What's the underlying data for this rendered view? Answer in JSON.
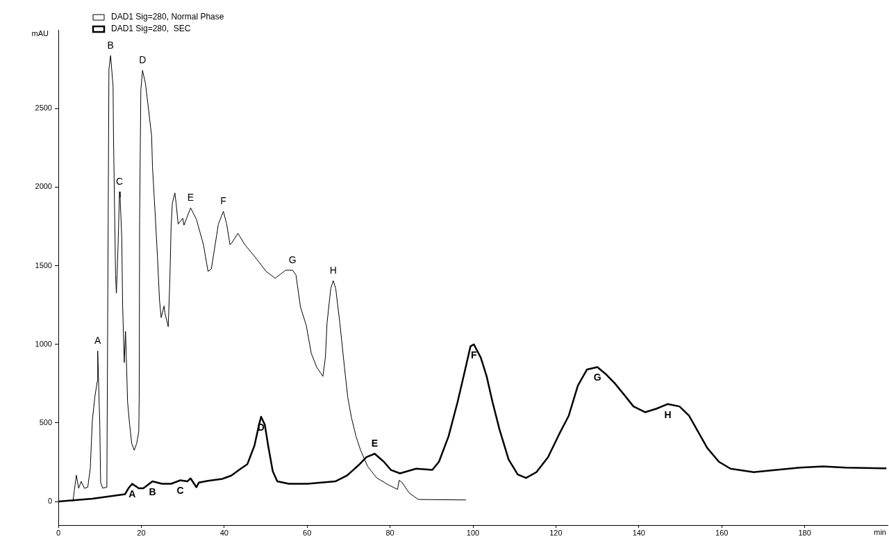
{
  "chart_data": {
    "type": "line",
    "xlabel": "min",
    "ylabel": "mAU",
    "xlim": [
      0,
      200
    ],
    "xticks": [
      0,
      20,
      40,
      60,
      80,
      100,
      120,
      140,
      160,
      180
    ],
    "ylim": [
      -150,
      3000
    ],
    "yticks": [
      0,
      500,
      1000,
      1500,
      2000,
      2500
    ],
    "grid": false,
    "legend": "top left",
    "marker": "none",
    "line_style": "solid",
    "series": [
      {
        "name": "DAD1 Sig=280, Normal Phase",
        "color": "#000000",
        "x": [
          3.5,
          4.35,
          4.9,
          5.5,
          6.3,
          7.1,
          7.7,
          8.2,
          8.8,
          9.4,
          9.5,
          9.7,
          10.0,
          10.2,
          10.7,
          11.7,
          12.2,
          12.6,
          13.2,
          13.3,
          13.8,
          14.0,
          14.4,
          14.75,
          14.9,
          15.3,
          15.5,
          15.9,
          16.2,
          16.4,
          16.7,
          17.2,
          17.7,
          18.3,
          18.9,
          19.4,
          19.5,
          19.6,
          19.9,
          20.3,
          21.0,
          21.6,
          22.5,
          22.7,
          23.3,
          23.9,
          24.4,
          24.8,
          25.5,
          25.7,
          26.5,
          26.9,
          27.2,
          27.5,
          28.1,
          28.4,
          28.9,
          30.0,
          30.3,
          31.9,
          33.3,
          35.0,
          36.1,
          36.9,
          38.6,
          39.8,
          40.6,
          41.4,
          41.9,
          43.3,
          45.0,
          47.3,
          50.1,
          52.3,
          54.8,
          56.5,
          57.3,
          58.4,
          59.8,
          61.0,
          62.3,
          63.8,
          64.4,
          64.8,
          65.7,
          66.3,
          66.9,
          67.9,
          69.0,
          69.8,
          70.7,
          71.8,
          72.9,
          74.6,
          76.8,
          79.6,
          81.8,
          82.2,
          82.9,
          84.6,
          86.8,
          98.3
        ],
        "values": [
          0,
          167,
          84,
          128,
          84,
          91,
          210,
          517,
          664,
          766,
          958,
          766,
          488,
          122,
          85,
          91,
          2749,
          2837,
          2639,
          2324,
          1443,
          1325,
          1619,
          1971,
          1935,
          1677,
          1251,
          884,
          1082,
          913,
          634,
          488,
          370,
          326,
          370,
          444,
          664,
          1795,
          2617,
          2742,
          2661,
          2529,
          2324,
          2132,
          1853,
          1560,
          1281,
          1170,
          1244,
          1200,
          1112,
          1413,
          1751,
          1897,
          1963,
          1897,
          1765,
          1802,
          1758,
          1868,
          1795,
          1633,
          1464,
          1479,
          1765,
          1846,
          1765,
          1633,
          1648,
          1706,
          1633,
          1560,
          1464,
          1420,
          1471,
          1471,
          1442,
          1237,
          1119,
          943,
          855,
          796,
          914,
          1134,
          1354,
          1405,
          1354,
          1134,
          855,
          664,
          532,
          414,
          326,
          223,
          150,
          106,
          77,
          135,
          121,
          55,
          13,
          10
        ]
      },
      {
        "name": "DAD1 Sig=280,  SEC",
        "color": "#000000",
        "x": [
          0,
          8.2,
          16.1,
          16.9,
          17.8,
          19.4,
          20.5,
          22.7,
          25.0,
          27.2,
          29.4,
          31.1,
          31.9,
          33.3,
          33.9,
          36.1,
          39.5,
          41.7,
          44.0,
          45.6,
          47.3,
          48.4,
          48.9,
          49.8,
          50.6,
          51.7,
          52.8,
          55.6,
          60.1,
          66.8,
          69.6,
          72.4,
          74.3,
          76.3,
          78.5,
          80.2,
          82.4,
          86.3,
          90.2,
          91.8,
          94.1,
          96.3,
          98.0,
          99.4,
          100.2,
          101.9,
          103.3,
          104.7,
          106.4,
          108.6,
          110.8,
          112.8,
          115.3,
          118.1,
          120.8,
          123.1,
          125.3,
          127.5,
          130.0,
          132.0,
          134.2,
          136.5,
          138.7,
          141.5,
          144.2,
          147.0,
          149.8,
          152.1,
          154.3,
          156.5,
          159.3,
          162.1,
          167.7,
          173.2,
          178.8,
          184.4,
          190.0,
          199.7
        ],
        "values": [
          0,
          18,
          47,
          84,
          113,
          84,
          84,
          128,
          113,
          113,
          135,
          128,
          147,
          91,
          121,
          132,
          144,
          165,
          209,
          238,
          356,
          488,
          539,
          488,
          356,
          194,
          128,
          113,
          113,
          128,
          165,
          231,
          282,
          304,
          253,
          201,
          179,
          209,
          201,
          253,
          414,
          634,
          826,
          987,
          1000,
          914,
          796,
          634,
          458,
          267,
          172,
          150,
          187,
          282,
          429,
          546,
          737,
          840,
          855,
          811,
          752,
          678,
          605,
          568,
          590,
          620,
          605,
          546,
          444,
          341,
          253,
          209,
          187,
          201,
          216,
          223,
          216,
          211
        ]
      }
    ],
    "annotations": [
      {
        "text": "A",
        "x": 9.5,
        "y": 958
      },
      {
        "text": "B",
        "x": 12.6,
        "y": 2837
      },
      {
        "text": "C",
        "x": 14.75,
        "y": 1971
      },
      {
        "text": "D",
        "x": 20.3,
        "y": 2742
      },
      {
        "text": "E",
        "x": 31.9,
        "y": 1868
      },
      {
        "text": "F",
        "x": 39.8,
        "y": 1846
      },
      {
        "text": "G",
        "x": 56.5,
        "y": 1471
      },
      {
        "text": "H",
        "x": 66.3,
        "y": 1405
      },
      {
        "text": "A",
        "x": 17.8,
        "y": 113
      },
      {
        "text": "B",
        "x": 22.7,
        "y": 128
      },
      {
        "text": "C",
        "x": 29.4,
        "y": 135
      },
      {
        "text": "D",
        "x": 48.9,
        "y": 539
      },
      {
        "text": "E",
        "x": 76.3,
        "y": 304
      },
      {
        "text": "F",
        "x": 100.2,
        "y": 1000
      },
      {
        "text": "G",
        "x": 130.0,
        "y": 855
      },
      {
        "text": "H",
        "x": 147.0,
        "y": 620
      }
    ]
  }
}
